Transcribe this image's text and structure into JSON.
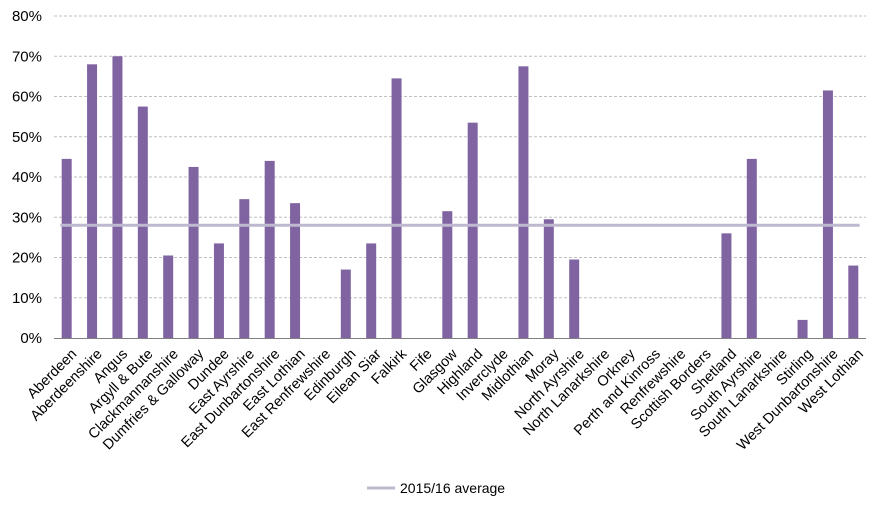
{
  "chart_data": {
    "type": "bar",
    "categories": [
      "Aberdeen",
      "Aberdeenshire",
      "Angus",
      "Argyll & Bute",
      "Clackmannanshire",
      "Dumfries & Galloway",
      "Dundee",
      "East Ayrshire",
      "East Dunbartonshire",
      "East Lothian",
      "East Renfrewshire",
      "Edinburgh",
      "Eilean Siar",
      "Falkirk",
      "Fife",
      "Glasgow",
      "Highland",
      "Inverclyde",
      "Midlothian",
      "Moray",
      "North Ayrshire",
      "North Lanarkshire",
      "Orkney",
      "Perth and Kinross",
      "Renfrewshire",
      "Scottish Borders",
      "Shetland",
      "South Ayrshire",
      "South Lanarkshire",
      "Stirling",
      "West Dunbartonshire",
      "West Lothian"
    ],
    "values": [
      44.5,
      68,
      70,
      57.5,
      20.5,
      42.5,
      23.5,
      34.5,
      44,
      33.5,
      0,
      17,
      23.5,
      64.5,
      0,
      31.5,
      53.5,
      0,
      67.5,
      29.5,
      19.5,
      0,
      0,
      0,
      0,
      0,
      26,
      44.5,
      0,
      4.5,
      61.5,
      18
    ],
    "average": {
      "name": "2015/16 average",
      "value": 28
    },
    "ylim": [
      0,
      80
    ],
    "yticks": [
      "0%",
      "10%",
      "20%",
      "30%",
      "40%",
      "50%",
      "60%",
      "70%",
      "80%"
    ],
    "grid": true,
    "legend_position": "bottom",
    "bar_color": "#8064a2",
    "average_color": "#bfb9cf"
  }
}
